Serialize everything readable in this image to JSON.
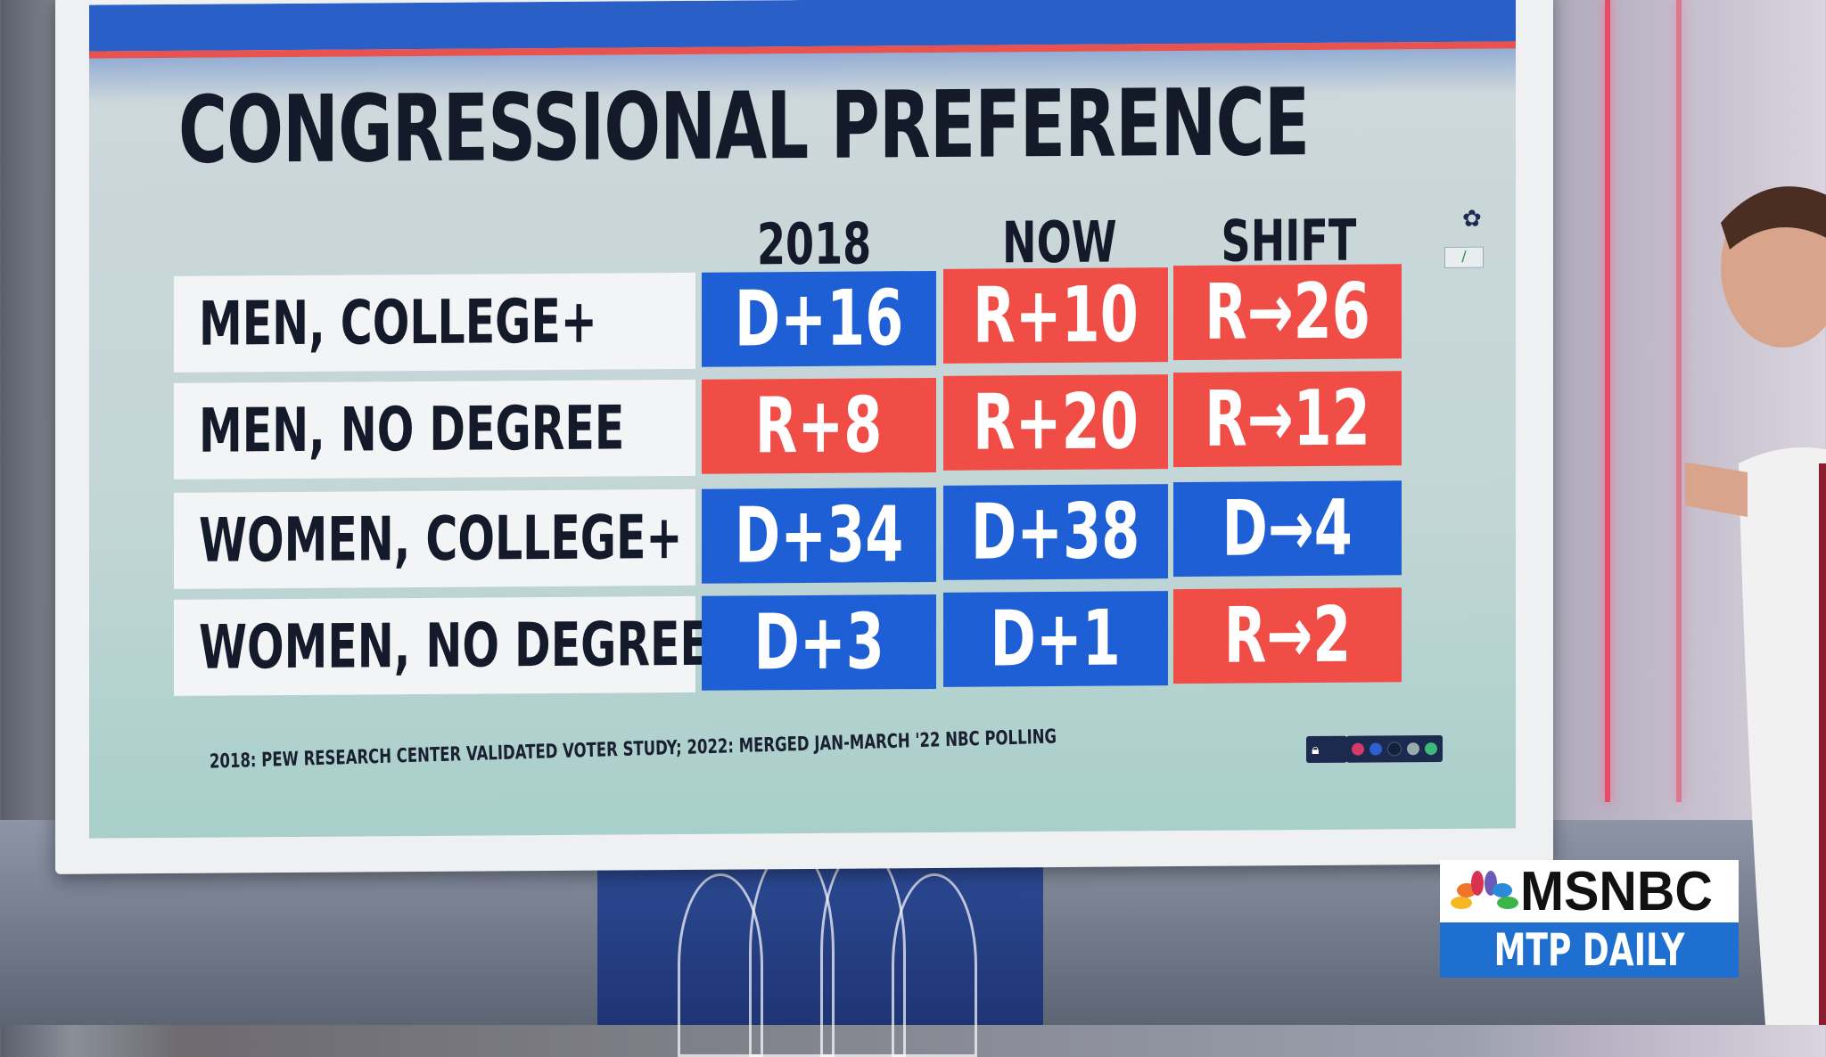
{
  "title": "CONGRESSIONAL PREFERENCE",
  "columns": [
    "2018",
    "NOW",
    "SHIFT"
  ],
  "rows": [
    {
      "label": "MEN, COLLEGE+",
      "y2018": "D+16",
      "now": "R+10",
      "shift": "R→26",
      "colors": [
        "#1f5fd6",
        "#ef4d45",
        "#ef4d45"
      ]
    },
    {
      "label": "MEN, NO DEGREE",
      "y2018": "R+8",
      "now": "R+20",
      "shift": "R→12",
      "colors": [
        "#ef4d45",
        "#ef4d45",
        "#ef4d45"
      ]
    },
    {
      "label": "WOMEN, COLLEGE+",
      "y2018": "D+34",
      "now": "D+38",
      "shift": "D→4",
      "colors": [
        "#1f5fd6",
        "#1f5fd6",
        "#1f5fd6"
      ]
    },
    {
      "label": "WOMEN, NO DEGREE",
      "y2018": "D+3",
      "now": "D+1",
      "shift": "R→2",
      "colors": [
        "#1f5fd6",
        "#1f5fd6",
        "#ef4d45"
      ]
    }
  ],
  "footer": "2018: PEW RESEARCH CENTER VALIDATED VOTER STUDY; 2022: MERGED JAN-MARCH '22 NBC POLLING",
  "toolbar": {
    "icons": [
      "lock-icon",
      "color-swatch-red",
      "color-swatch-blue",
      "color-swatch-navy",
      "color-swatch-gray",
      "color-swatch-green"
    ]
  },
  "logo": {
    "network": "MSNBC",
    "show": "MTP DAILY"
  },
  "colors": {
    "democrat": "#1f5fd6",
    "republican": "#ef4d45",
    "header_blue": "#2a5fc7",
    "header_red": "#e8524f"
  }
}
